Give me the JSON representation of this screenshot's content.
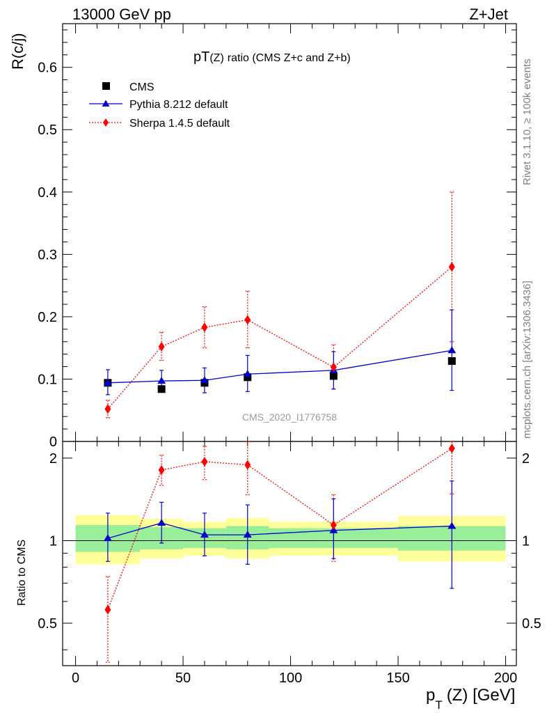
{
  "header": {
    "left": "13000 GeV pp",
    "right": "Z+Jet"
  },
  "side": {
    "rivet": "Rivet 3.1.10, ≥ 100k events",
    "mcplots": "mcplots.cern.ch [arXiv:1306.3436]"
  },
  "watermark": "CMS_2020_I1776758",
  "colors": {
    "data": "#000000",
    "pythia": "#0000cc",
    "sherpa": "#ff0000",
    "band_inner": "#99ef99",
    "band_outer": "#ffff99"
  },
  "chart_data": [
    {
      "type": "scatter",
      "title": "pT(Z) ratio (CMS  Z+c and Z+b)",
      "title_parts": {
        "main": "pT",
        "sub": "(Z)",
        "rest": "ratio (CMS  Z+c and Z+b)"
      },
      "ylabel": "R(c/j)",
      "xlim": [
        -6,
        205
      ],
      "ylim": [
        0,
        0.67
      ],
      "yticks": [
        0,
        0.1,
        0.2,
        0.3,
        0.4,
        0.5,
        0.6
      ],
      "ytick_labels": [
        "0",
        "0.1",
        "0.2",
        "0.3",
        "0.4",
        "0.5",
        "0.6"
      ],
      "legend_position": "top-left",
      "x": [
        15,
        40,
        60,
        80,
        120,
        175
      ],
      "xerr": [
        15,
        10,
        10,
        10,
        30,
        25
      ],
      "series": [
        {
          "name": "CMS",
          "style": "markers",
          "values": [
            0.094,
            0.084,
            0.094,
            0.103,
            0.105,
            0.129
          ]
        },
        {
          "name": "Pythia 8.212 default",
          "style": "line",
          "values": [
            0.094,
            0.097,
            0.098,
            0.108,
            0.114,
            0.146
          ],
          "err_low": [
            0.019,
            0.016,
            0.02,
            0.028,
            0.03,
            0.064
          ],
          "err_high": [
            0.021,
            0.017,
            0.02,
            0.03,
            0.03,
            0.065
          ]
        },
        {
          "name": "Sherpa 1.4.5 default",
          "style": "dotted",
          "values": [
            0.052,
            0.152,
            0.183,
            0.195,
            0.119,
            0.28
          ],
          "err_low": [
            0.014,
            0.022,
            0.033,
            0.045,
            0.035,
            0.12
          ],
          "err_high": [
            0.014,
            0.023,
            0.033,
            0.046,
            0.036,
            0.12
          ]
        }
      ]
    },
    {
      "type": "scatter",
      "ylabel": "Ratio to CMS",
      "xlabel_main": "p",
      "xlabel_sub": "T",
      "xlabel_rest": "(Z) [GeV]",
      "xlim": [
        -6,
        205
      ],
      "ylim": [
        0.35,
        2.3
      ],
      "log_y": true,
      "xticks": [
        0,
        50,
        100,
        150,
        200
      ],
      "xtick_labels": [
        "0",
        "50",
        "100",
        "150",
        "200"
      ],
      "yticks": [
        0.5,
        1,
        2
      ],
      "ytick_labels": [
        "0.5",
        "1",
        "2"
      ],
      "bands": {
        "edges": [
          0,
          30,
          50,
          70,
          90,
          150,
          200
        ],
        "inner_low": [
          0.91,
          0.93,
          0.94,
          0.93,
          0.94,
          0.92
        ],
        "inner_high": [
          1.14,
          1.12,
          1.11,
          1.13,
          1.11,
          1.13
        ],
        "outer_low": [
          0.82,
          0.86,
          0.88,
          0.86,
          0.88,
          0.84
        ],
        "outer_high": [
          1.24,
          1.2,
          1.17,
          1.21,
          1.17,
          1.23
        ]
      },
      "series": [
        {
          "name": "Pythia 8.212 default",
          "values": [
            1.02,
            1.16,
            1.05,
            1.05,
            1.09,
            1.13
          ],
          "err_low": [
            0.18,
            0.18,
            0.17,
            0.23,
            0.23,
            0.46
          ],
          "err_high": [
            0.24,
            0.22,
            0.21,
            0.3,
            0.33,
            0.52
          ]
        },
        {
          "name": "Sherpa 1.4.5 default",
          "values": [
            0.56,
            1.81,
            1.94,
            1.89,
            1.14,
            2.17
          ],
          "err_low": [
            0.2,
            0.22,
            0.27,
            0.42,
            0.3,
            0.69
          ],
          "err_high": [
            0.18,
            0.24,
            0.27,
            0.43,
            0.33,
            0.69
          ]
        }
      ]
    }
  ]
}
